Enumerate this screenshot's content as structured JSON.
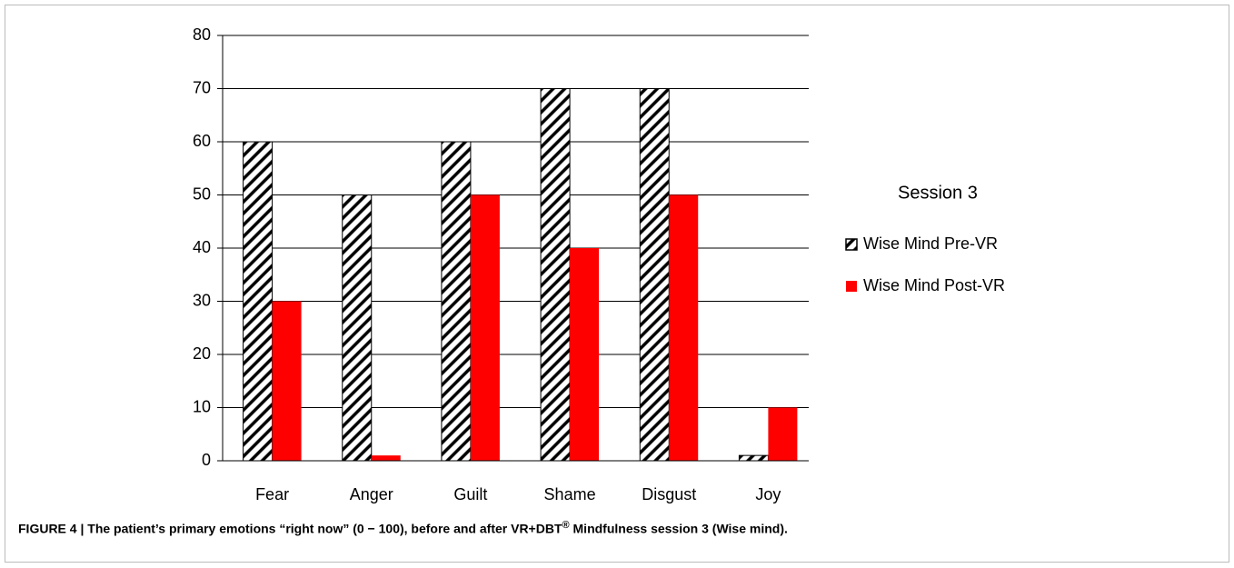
{
  "chart_data": {
    "type": "bar",
    "categories": [
      "Fear",
      "Anger",
      "Guilt",
      "Shame",
      "Disgust",
      "Joy"
    ],
    "series": [
      {
        "name": "Wise Mind Pre-VR",
        "color": "#000000",
        "pattern": "hatch",
        "values": [
          60,
          50,
          60,
          70,
          70,
          1
        ]
      },
      {
        "name": "Wise Mind Post-VR",
        "color": "#ff0000",
        "values": [
          30,
          1,
          50,
          40,
          50,
          10
        ]
      }
    ],
    "legend_title": "Session 3",
    "legend_position": "right",
    "ylim": [
      0,
      80
    ],
    "yticks": [
      0,
      10,
      20,
      30,
      40,
      50,
      60,
      70,
      80
    ],
    "grid": true,
    "caption": [
      "FIGURE 4 | The patient’s primary emotions “right now” (0 − 100), before and after VR+DBT",
      "®",
      " Mindfulness session 3 (Wise mind)."
    ]
  }
}
